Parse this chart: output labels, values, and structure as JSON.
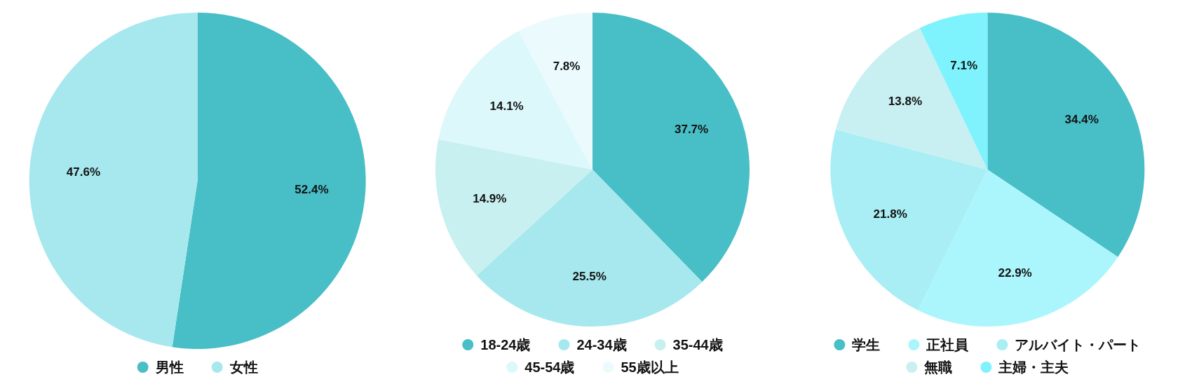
{
  "chart_data": [
    {
      "type": "pie",
      "categories": [
        "男性",
        "女性"
      ],
      "values": [
        52.4,
        47.6
      ],
      "colors": [
        "#48bec6",
        "#a6e8ee"
      ],
      "value_labels": [
        "52.4%",
        "47.6%"
      ],
      "legend": "bottom"
    },
    {
      "type": "pie",
      "categories": [
        "18-24歳",
        "24-34歳",
        "35-44歳",
        "45-54歳",
        "55歳以上"
      ],
      "values": [
        37.7,
        25.5,
        14.9,
        14.1,
        7.8
      ],
      "colors": [
        "#48bec6",
        "#a6e8ee",
        "#c8f0f1",
        "#dcf8fb",
        "#ebfbfd"
      ],
      "value_labels": [
        "37.7%",
        "25.5%",
        "14.9%",
        "14.1%",
        "7.8%"
      ],
      "legend": "bottom"
    },
    {
      "type": "pie",
      "categories": [
        "学生",
        "正社員",
        "アルバイト・パート",
        "無職",
        "主婦・主夫"
      ],
      "values": [
        34.4,
        22.9,
        21.8,
        13.8,
        7.1
      ],
      "colors": [
        "#48bec6",
        "#aaf6fc",
        "#a8eef4",
        "#c8eff1",
        "#7ef3fd"
      ],
      "value_labels": [
        "34.4%",
        "22.9%",
        "21.8%",
        "13.8%",
        "7.1%"
      ],
      "legend": "bottom"
    }
  ]
}
